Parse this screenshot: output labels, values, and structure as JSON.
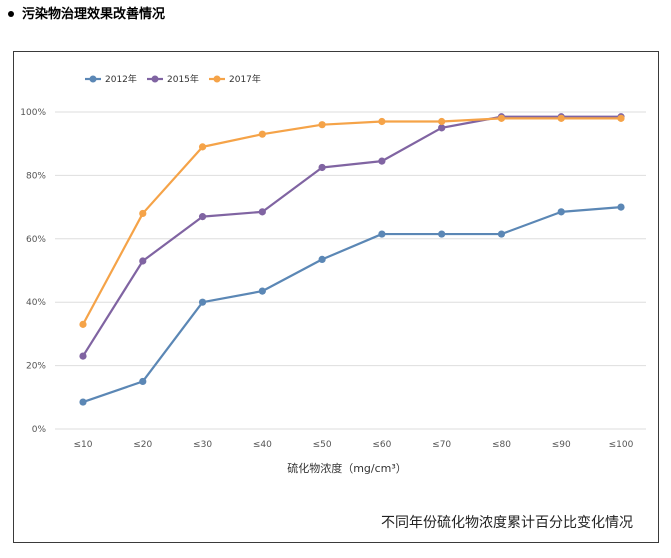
{
  "page": {
    "heading": "污染物治理效果改善情况"
  },
  "chart_data": {
    "type": "line",
    "title": "",
    "caption": "不同年份硫化物浓度累计百分比变化情况",
    "xlabel": "硫化物浓度（mg/cm³）",
    "ylabel": "",
    "categories": [
      "≤10",
      "≤20",
      "≤30",
      "≤40",
      "≤50",
      "≤60",
      "≤70",
      "≤80",
      "≤90",
      "≤100"
    ],
    "ylim": [
      0,
      100
    ],
    "yticks": [
      0,
      20,
      40,
      60,
      80,
      100
    ],
    "ytick_labels": [
      "0%",
      "20%",
      "40%",
      "60%",
      "80%",
      "100%"
    ],
    "grid": true,
    "legend_position": "top-left",
    "series": [
      {
        "name": "2012年",
        "color": "#5b87b5",
        "values": [
          8.5,
          15,
          40,
          43.5,
          53.5,
          61.5,
          61.5,
          61.5,
          68.5,
          70
        ]
      },
      {
        "name": "2015年",
        "color": "#8064a2",
        "values": [
          23,
          53,
          67,
          68.5,
          82.5,
          84.5,
          95,
          98.5,
          98.5,
          98.5
        ]
      },
      {
        "name": "2017年",
        "color": "#f5a348",
        "values": [
          33,
          68,
          89,
          93,
          96,
          97,
          97,
          98,
          98,
          98
        ]
      }
    ]
  }
}
